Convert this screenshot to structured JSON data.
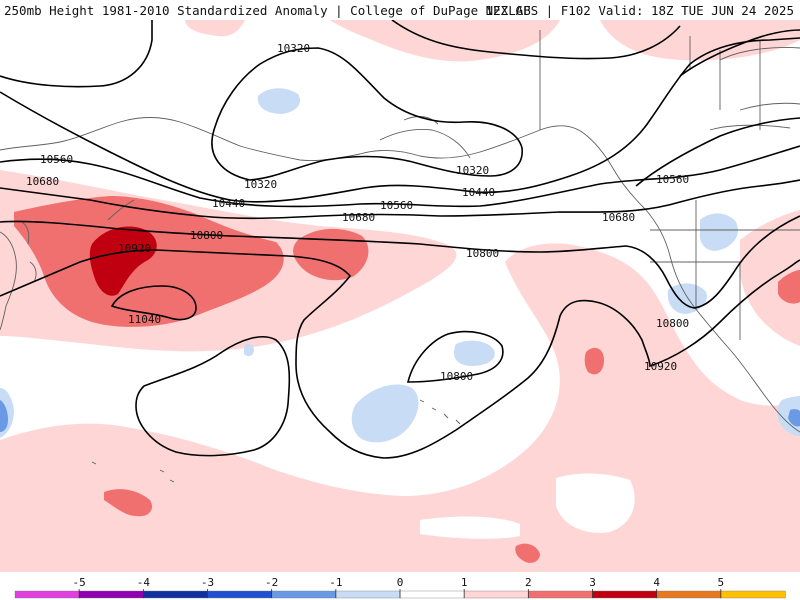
{
  "header": {
    "title_left": "250mb Height 1981-2010 Standardized Anomaly | College of DuPage NEXLAB",
    "title_right": "12Z GFS | F102 Valid: 18Z TUE JUN 24 2025"
  },
  "map": {
    "contour_labels": [
      "10320",
      "10320",
      "10320",
      "10440",
      "10440",
      "10560",
      "10560",
      "10560",
      "10680",
      "10680",
      "10680",
      "10800",
      "10800",
      "10800",
      "10800",
      "10920",
      "10920",
      "11040"
    ]
  },
  "colorbar": {
    "ticks": [
      "-5",
      "-4",
      "-3",
      "-2",
      "-1",
      "0",
      "1",
      "2",
      "3",
      "4",
      "5"
    ],
    "colors": [
      "#e040e0",
      "#9000b0",
      "#1030a0",
      "#2050d0",
      "#6a9ae6",
      "#c8dcf6",
      "#ffffff",
      "#ffd6d6",
      "#f07070",
      "#c00010",
      "#e87820",
      "#ffc000"
    ]
  }
}
